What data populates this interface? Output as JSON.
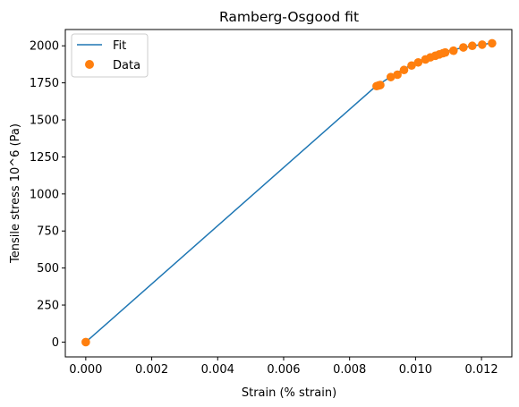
{
  "chart_data": {
    "type": "line",
    "title": "Ramberg-Osgood fit",
    "xlabel": "Strain (% strain)",
    "ylabel": "Tensile stress 10^6 (Pa)",
    "xlim": [
      -0.00062,
      0.01292
    ],
    "ylim": [
      -100,
      2110
    ],
    "xticks": [
      0.0,
      0.002,
      0.004,
      0.006,
      0.008,
      0.01,
      0.012
    ],
    "xtick_labels": [
      "0.000",
      "0.002",
      "0.004",
      "0.006",
      "0.008",
      "0.010",
      "0.012"
    ],
    "yticks": [
      0,
      250,
      500,
      750,
      1000,
      1250,
      1500,
      1750,
      2000
    ],
    "ytick_labels": [
      "0",
      "250",
      "500",
      "750",
      "1000",
      "1250",
      "1500",
      "1750",
      "2000"
    ],
    "grid": false,
    "legend": {
      "position": "top-left",
      "entries": [
        "Fit",
        "Data"
      ]
    },
    "series": [
      {
        "name": "Fit",
        "kind": "line",
        "color": "#1f77b4",
        "x": [
          0.0,
          0.0088,
          0.0089,
          0.0092,
          0.0094,
          0.0096,
          0.0098,
          0.01,
          0.0102,
          0.0104,
          0.0106,
          0.0108,
          0.011,
          0.0112,
          0.0114,
          0.0116,
          0.0118,
          0.012,
          0.0123
        ],
        "y": [
          0,
          1728,
          1740,
          1785,
          1810,
          1838,
          1862,
          1886,
          1906,
          1924,
          1940,
          1954,
          1966,
          1976,
          1986,
          1994,
          2002,
          2008,
          2018
        ]
      },
      {
        "name": "Data",
        "kind": "scatter",
        "color": "#ff7f0e",
        "x": [
          0.0,
          0.00882,
          0.00888,
          0.00893,
          0.00925,
          0.00945,
          0.00965,
          0.00988,
          0.01008,
          0.0103,
          0.01045,
          0.0106,
          0.01072,
          0.01083,
          0.0109,
          0.01115,
          0.01145,
          0.01172,
          0.01202,
          0.01232
        ],
        "y": [
          0,
          1728,
          1732,
          1735,
          1789,
          1805,
          1837,
          1867,
          1888,
          1908,
          1922,
          1933,
          1942,
          1950,
          1955,
          1967,
          1989,
          2000,
          2008,
          2017
        ]
      }
    ]
  }
}
